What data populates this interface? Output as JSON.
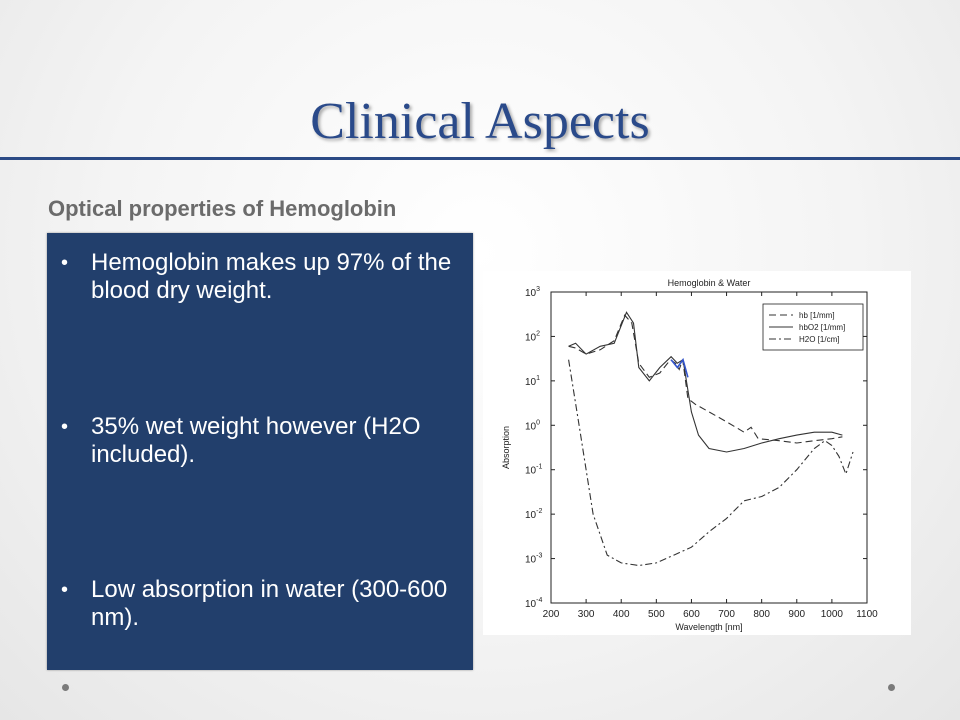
{
  "slide": {
    "title": "Clinical Aspects",
    "subtitle": "Optical properties of Hemoglobin",
    "bullets": [
      "Hemoglobin makes up 97% of the blood dry weight.",
      "35% wet weight however (H2O included).",
      "Low absorption in water (300-600 nm)."
    ],
    "colors": {
      "title": "#2a4a8a",
      "panel": "#223f6c",
      "rule": "#2b4a85"
    },
    "bullet_glyph": "•"
  },
  "chart_data": {
    "type": "line",
    "title": "Hemoglobin & Water",
    "xlabel": "Wavelength [nm]",
    "ylabel": "Absorption",
    "xlim": [
      200,
      1100
    ],
    "ylim": [
      0.0001,
      1000
    ],
    "yscale": "log",
    "x_ticks": [
      200,
      300,
      400,
      500,
      600,
      700,
      800,
      900,
      1000,
      1100
    ],
    "y_ticks": [
      {
        "base": "10",
        "exp": "-4",
        "value": 0.0001
      },
      {
        "base": "10",
        "exp": "-3",
        "value": 0.001
      },
      {
        "base": "10",
        "exp": "-2",
        "value": 0.01
      },
      {
        "base": "10",
        "exp": "-1",
        "value": 0.1
      },
      {
        "base": "10",
        "exp": "0",
        "value": 1
      },
      {
        "base": "10",
        "exp": "1",
        "value": 10
      },
      {
        "base": "10",
        "exp": "2",
        "value": 100
      },
      {
        "base": "10",
        "exp": "3",
        "value": 1000
      }
    ],
    "legend_position": "top-right",
    "grid": false,
    "series": [
      {
        "name": "hb [1/mm]",
        "dash": "dashed",
        "color": "#333333",
        "x": [
          250,
          270,
          300,
          340,
          380,
          410,
          430,
          450,
          480,
          510,
          540,
          555,
          565,
          575,
          590,
          610,
          650,
          700,
          750,
          770,
          790,
          850,
          900,
          950,
          1000,
          1030
        ],
        "y": [
          60,
          55,
          40,
          50,
          80,
          300,
          200,
          25,
          12,
          15,
          30,
          25,
          18,
          30,
          4,
          3,
          2,
          1.2,
          0.7,
          0.9,
          0.5,
          0.45,
          0.4,
          0.45,
          0.5,
          0.55
        ]
      },
      {
        "name": "hbO2 [1/mm]",
        "dash": "solid",
        "color": "#333333",
        "x": [
          250,
          270,
          300,
          340,
          380,
          415,
          435,
          450,
          480,
          510,
          542,
          560,
          576,
          600,
          620,
          650,
          700,
          750,
          800,
          850,
          900,
          950,
          1000,
          1030
        ],
        "y": [
          60,
          70,
          40,
          60,
          70,
          350,
          200,
          20,
          10,
          20,
          35,
          25,
          30,
          2,
          0.6,
          0.3,
          0.25,
          0.3,
          0.4,
          0.5,
          0.6,
          0.7,
          0.7,
          0.6
        ]
      },
      {
        "name": "H2O [1/cm]",
        "dash": "dashdot",
        "color": "#333333",
        "x": [
          250,
          280,
          320,
          360,
          400,
          450,
          500,
          550,
          600,
          650,
          700,
          750,
          800,
          850,
          900,
          950,
          980,
          1000,
          1020,
          1040,
          1060
        ],
        "y": [
          30,
          1,
          0.01,
          0.0012,
          0.0008,
          0.0007,
          0.0008,
          0.0012,
          0.0018,
          0.004,
          0.008,
          0.02,
          0.025,
          0.04,
          0.1,
          0.3,
          0.45,
          0.35,
          0.2,
          0.08,
          0.25
        ]
      }
    ],
    "annotation": {
      "color": "#3355cc",
      "x": [
        542,
        560,
        576,
        590
      ],
      "y": [
        30,
        20,
        30,
        12
      ]
    }
  }
}
